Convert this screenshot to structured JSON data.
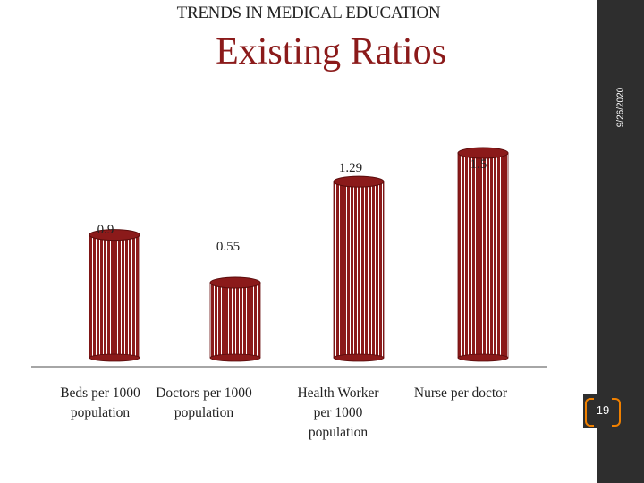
{
  "slide": {
    "header": "TRENDS IN MEDICAL EDUCATION",
    "title": "Existing Ratios",
    "date": "9/26/2020",
    "page_number": "19"
  },
  "colors": {
    "bar_fill": "#8b1a1a",
    "bar_stripe": "#ffffff",
    "title": "#8b1a1a",
    "sidebar": "#2e2e2e",
    "page_bracket": "#f08000"
  },
  "chart_data": {
    "type": "bar",
    "title": "",
    "xlabel": "",
    "ylabel": "",
    "categories": [
      [
        "Beds per 1000",
        "population"
      ],
      [
        "Doctors per 1000",
        "population"
      ],
      [
        "Health Worker",
        "per 1000",
        "population"
      ],
      [
        "Nurse per doctor"
      ]
    ],
    "series": [
      {
        "values": [
          0.9,
          0.55,
          1.29,
          1.5
        ],
        "labels": [
          "0.9",
          "0.55",
          "1.29",
          "1.5"
        ]
      }
    ],
    "ylim": [
      0,
      1.9
    ],
    "grid": false,
    "legend": "none"
  }
}
